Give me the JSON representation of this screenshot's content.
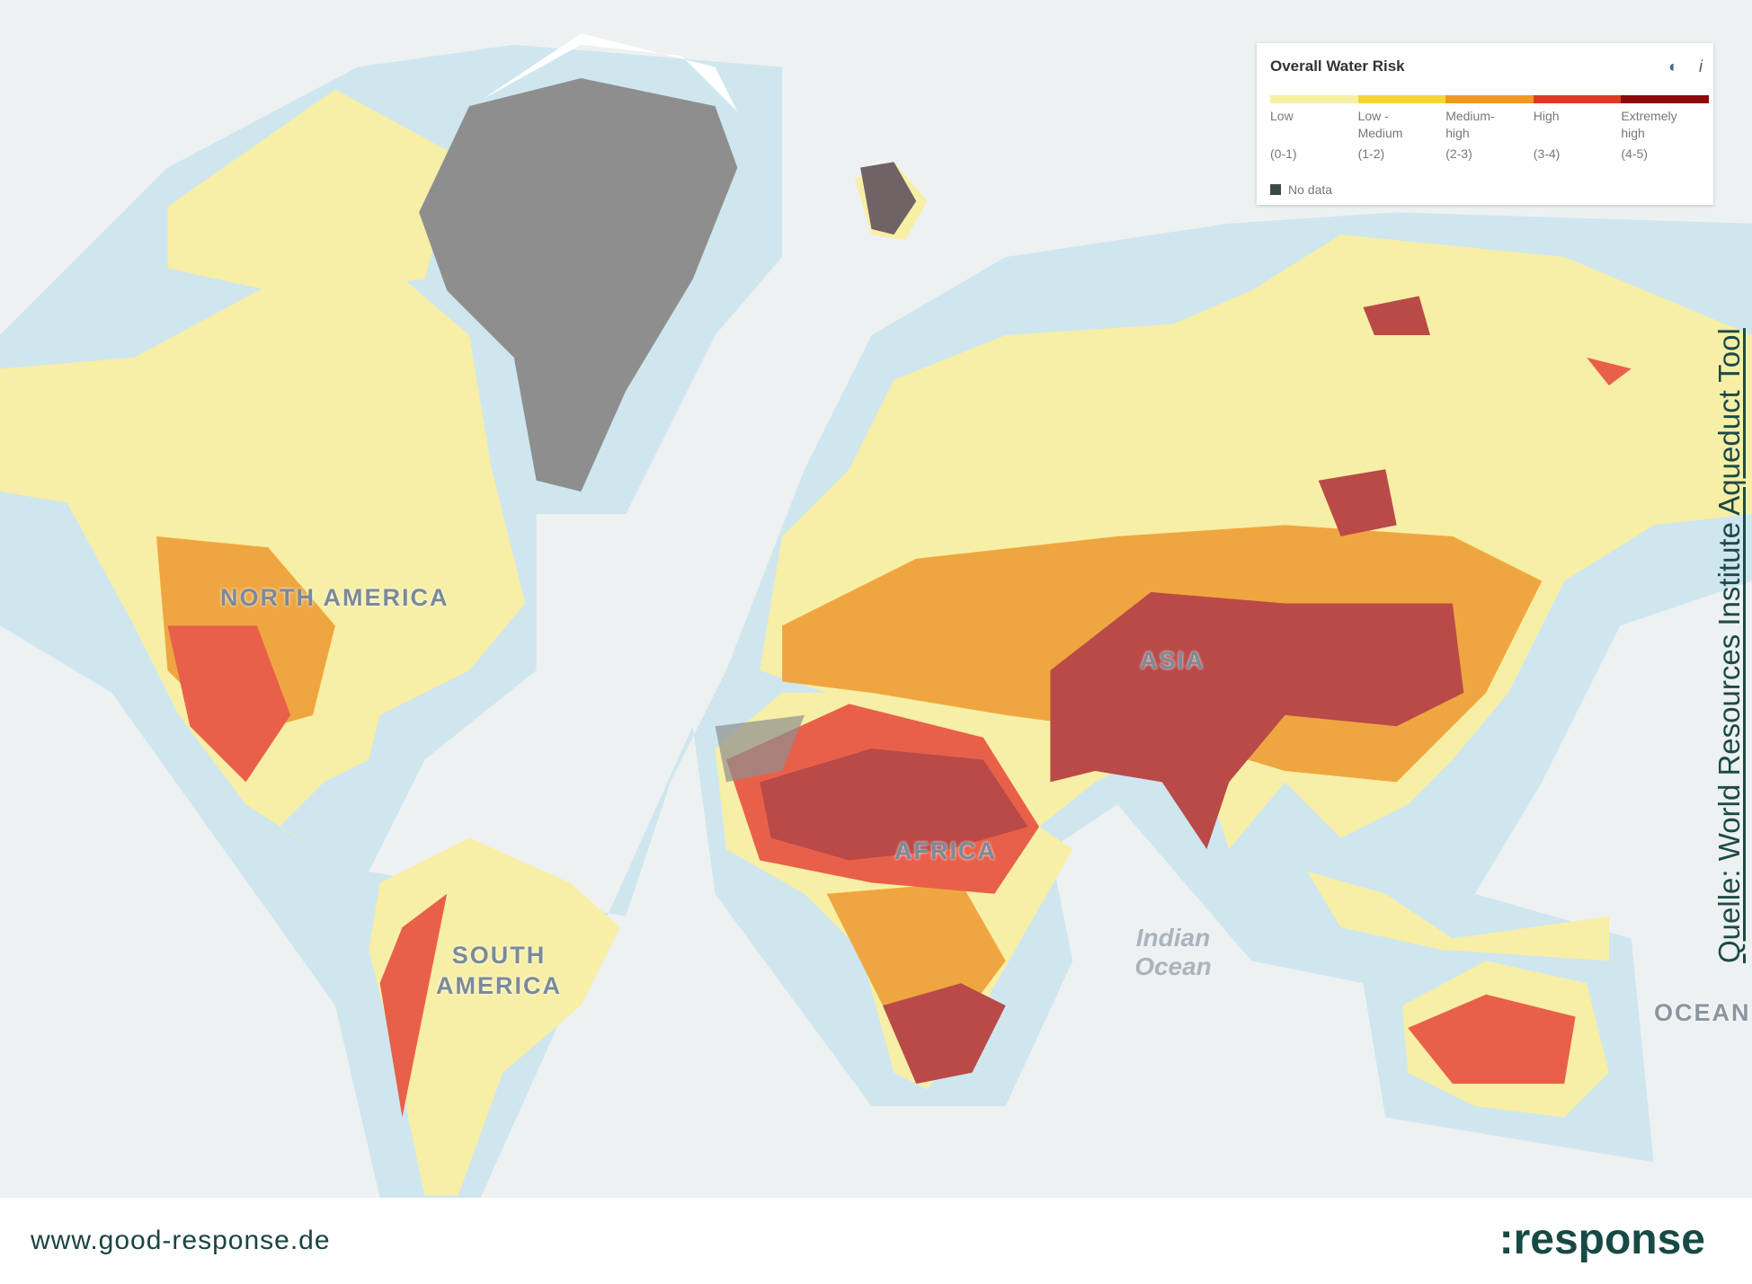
{
  "map": {
    "labels": {
      "north_america": "NORTH AMERICA",
      "south_america": "SOUTH AMERICA",
      "africa": "AFRICA",
      "asia": "ASIA",
      "indian_ocean": "Indian Ocean",
      "ocean": "OCEAN"
    },
    "colors": {
      "ocean": "#eef1f1",
      "shelf": "#cfe6ef",
      "low": "#f7efa6",
      "low_medium": "#f6d542",
      "medium_high": "#f0a640",
      "high": "#e8604a",
      "extremely_high": "#b94a48",
      "no_data": "#8e8e8e"
    }
  },
  "legend": {
    "title": "Overall Water Risk",
    "icons": [
      "layers-icon",
      "info-icon"
    ],
    "categories": [
      {
        "label": "Low",
        "range": "(0-1)",
        "color": "#f7f0a2"
      },
      {
        "label": "Low - Medium",
        "range": "(1-2)",
        "color": "#f5d630"
      },
      {
        "label": "Medium-high",
        "range": "(2-3)",
        "color": "#ee9a1f"
      },
      {
        "label": "High",
        "range": "(3-4)",
        "color": "#e13a20"
      },
      {
        "label": "Extremely high",
        "range": "(4-5)",
        "color": "#8e0b0b"
      }
    ],
    "no_data": "No data"
  },
  "source": "Quelle: World Resources Institute Aqueduct Tool",
  "footer": {
    "url": "www.good-response.de",
    "logo": ":response"
  }
}
